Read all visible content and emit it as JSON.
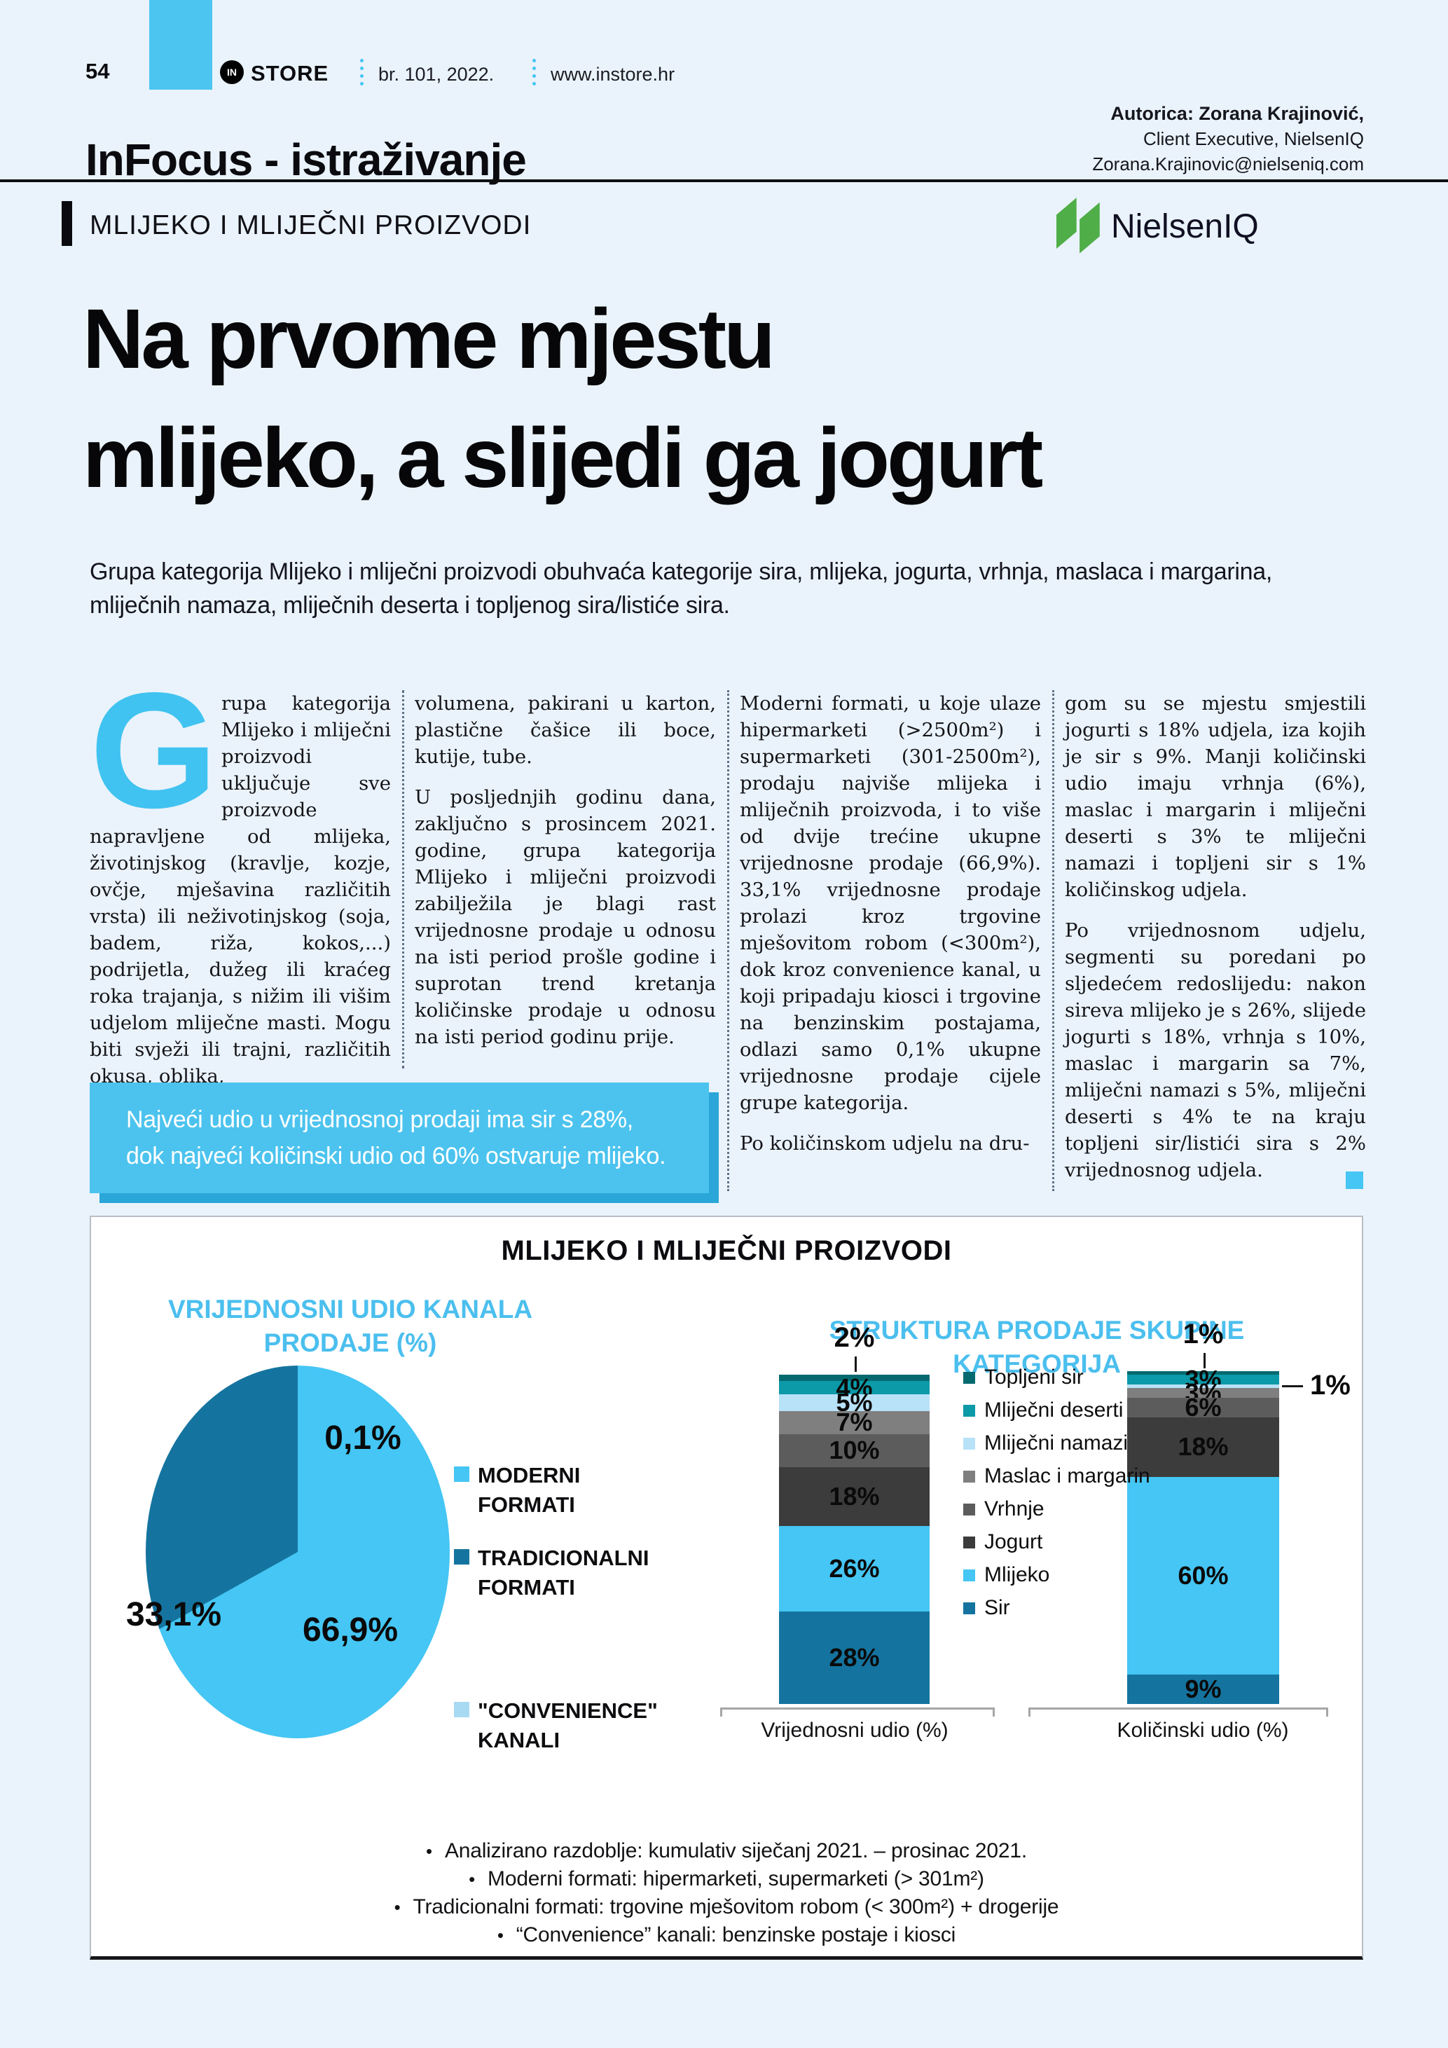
{
  "header": {
    "page_number": "54",
    "brand_mark": "IN",
    "brand": "STORE",
    "issue": "br. 101, 2022.",
    "site": "www.instore.hr",
    "section": "InFocus - istraživanje"
  },
  "author": {
    "line1": "Autorica: Zorana Krajinović,",
    "line2": "Client Executive, NielsenIQ",
    "line3": "Zorana.Krajinovic@nielseniq.com"
  },
  "nielseniq_logo": "NielsenIQ",
  "article": {
    "kicker": "MLIJEKO I MLIJEČNI PROIZVODI",
    "headline_line1": "Na prvome mjestu",
    "headline_line2": "mlijeko, a slijedi ga jogurt",
    "lead": "Grupa kategorija Mlijeko i mliječni proizvodi obuhvaća kategorije sira, mlijeka, jogurta, vrhnja, maslaca i margarina, mliječnih namaza, mliječnih deserta i topljenog sira/listiće sira.",
    "dropcap": "G",
    "col1_p1": "rupa kategorija Mlijeko i mliječni proizvodi uključuje sve proizvode napravljene od mlijeka, životinjskog (kravlje, kozje, ovčje, mješavina različitih vrsta) ili neživotinjskog (soja, badem, riža, kokos,...) podrijetla, dužeg ili kraćeg roka trajanja, s nižim ili višim udjelom mliječne masti. Mogu biti svježi ili trajni, različitih okusa, oblika,",
    "col2_p1": "volumena, pakirani u karton, plastične čašice ili boce, kutije, tube.",
    "col2_p2": "U posljednjih godinu dana, zaključno s prosincem 2021. godine, grupa kategorija Mlijeko i mliječni proizvodi zabilježila je blagi rast vrijednosne prodaje u odnosu na isti period prošle godine i suprotan trend kretanja količinske prodaje u odnosu na isti period godinu prije.",
    "col3_p1": "Moderni formati, u koje ulaze hipermarketi (>2500m²) i supermarketi (301-2500m²), prodaju najviše mlijeka i mliječnih proizvoda, i to više od dvije trećine ukupne vrijednosne prodaje (66,9%). 33,1% vrijednosne prodaje prolazi kroz trgovine mješovitom robom (<300m²), dok kroz convenience kanal, u koji pripadaju kiosci i trgovine na benzinskim postajama, odlazi samo 0,1% ukupne vrijednosne prodaje cijele grupe kategorija.",
    "col3_p2": "Po količinskom udjelu na dru-",
    "col4_p1": "gom su se mjestu smjestili jogurti s 18% udjela, iza kojih je sir s 9%. Manji količinski udio imaju vrhnja (6%), maslac i margarin i mliječni deserti s 3% te mliječni namazi i topljeni sir s 1% količinskog udjela.",
    "col4_p2": "Po vrijednosnom udjelu, segmenti su poredani po sljedećem redoslijedu: nakon sireva mlijeko je s 26%, slijede jogurti s 18%, vrhnja s 10%, maslac i margarin sa 7%, mliječni namazi s 5%, mliječni deserti s 4% te na kraju topljeni sir/listići sira s 2% vrijednosnog udjela.",
    "callout": "Najveći udio u vrijednosnoj prodaji ima sir s 28%, dok najveći količinski udio od 60% ostvaruje mlijeko."
  },
  "chart_box_title": "MLIJEKO I MLIJEČNI PROIZVODI",
  "chart_data": [
    {
      "type": "pie",
      "title": "VRIJEDNOSNI UDIO KANALA PRODAJE (%)",
      "labels": [
        "MODERNI FORMATI",
        "TRADICIONALNI FORMATI",
        "\"CONVENIENCE\" KANALI"
      ],
      "values": [
        66.9,
        33.1,
        0.1
      ],
      "display_values": [
        "66,9%",
        "33,1%",
        "0,1%"
      ],
      "colors": [
        "#45c6f4",
        "#15749f",
        "#a9daf3"
      ],
      "legend_position": "right"
    },
    {
      "type": "bar",
      "stacked": true,
      "title": "STRUKTURA PRODAJE SKUPINE KATEGORIJA",
      "categories": [
        "Vrijednosni udio (%)",
        "Količinski udio (%)"
      ],
      "series": [
        {
          "name": "Topljeni sir",
          "values": [
            2,
            1
          ],
          "color": "#046a70"
        },
        {
          "name": "Mliječni deserti",
          "values": [
            4,
            3
          ],
          "color": "#0c99a8"
        },
        {
          "name": "Mliječni namazi",
          "values": [
            5,
            1
          ],
          "color": "#b8e2f8"
        },
        {
          "name": "Maslac i margarin",
          "values": [
            7,
            3
          ],
          "color": "#7f7f7f"
        },
        {
          "name": "Vrhnje",
          "values": [
            10,
            6
          ],
          "color": "#5c5c5c"
        },
        {
          "name": "Jogurt",
          "values": [
            18,
            18
          ],
          "color": "#3c3c3c"
        },
        {
          "name": "Mlijeko",
          "values": [
            26,
            60
          ],
          "color": "#45c6f4"
        },
        {
          "name": "Sir",
          "values": [
            28,
            9
          ],
          "color": "#15749f"
        }
      ],
      "ylim": [
        0,
        100
      ],
      "grid": false,
      "value_suffix": "%",
      "legend_position": "middle"
    }
  ],
  "footnotes": [
    "Analizirano razdoblje: kumulativ siječanj 2021. – prosinac 2021.",
    "Moderni formati: hipermarketi, supermarketi (> 301m²)",
    "Tradicionalni formati: trgovine mješovitom robom (< 300m²) + drogerije",
    "“Convenience” kanali: benzinske postaje i kiosci"
  ],
  "colors": {
    "page_bg": "#eaf3fb",
    "accent_cyan": "#45c6f4",
    "callout_bg": "#4cc3ee",
    "callout_shadow": "#2aa6d8",
    "subtitle_blue": "#4bbfee",
    "nielseniq_green": "#4fae48"
  }
}
